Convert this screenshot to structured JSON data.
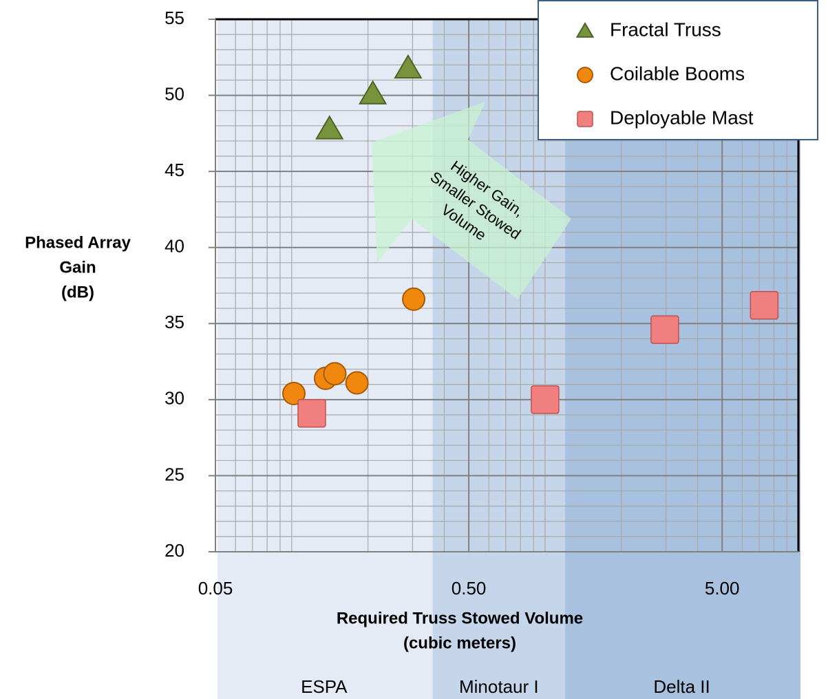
{
  "chart_data": {
    "type": "scatter",
    "xlabel": [
      "Required Truss Stowed Volume",
      "(cubic meters)"
    ],
    "ylabel": [
      "Phased Array",
      "Gain",
      "(dB)"
    ],
    "xscale": "log",
    "xlim": [
      0.05,
      10
    ],
    "ylim": [
      20,
      55
    ],
    "xticks": [
      0.05,
      {
        "value": 0.5,
        "label": "0.50"
      },
      {
        "value": 5,
        "label": "5.00"
      }
    ],
    "yticks": [
      20,
      25,
      30,
      35,
      40,
      45,
      50,
      55
    ],
    "xminorticks": [
      0.06,
      0.07,
      0.08,
      0.09,
      0.1,
      0.2,
      0.3,
      0.4,
      0.6,
      0.7,
      0.8,
      0.9,
      1,
      2,
      3,
      4,
      6,
      7,
      8,
      9
    ],
    "yminorticks": [
      21,
      22,
      23,
      24,
      26,
      27,
      28,
      29,
      31,
      32,
      33,
      34,
      36,
      37,
      38,
      39,
      41,
      42,
      43,
      44,
      46,
      47,
      48,
      49,
      51,
      52,
      53,
      54
    ],
    "grid": true,
    "legend": "top right",
    "bands": [
      {
        "label": "ESPA",
        "from": 0.05,
        "to": 0.36,
        "color": "#e4ebf4"
      },
      {
        "label": "Minotaur I",
        "from": 0.36,
        "to": 1.2,
        "color": "#c6d6ea"
      },
      {
        "label": "Delta II",
        "from": 1.2,
        "to": 10,
        "color": "#a8c1df"
      }
    ],
    "annotation": [
      "Higher Gain,",
      "Smaller Stowed",
      "Volume"
    ],
    "series": [
      {
        "name": "Fractal Truss",
        "marker": "triangle",
        "color": "#77933c",
        "x": [
          0.141,
          0.209,
          0.288
        ],
        "values": [
          47.8,
          50.1,
          51.8
        ]
      },
      {
        "name": "Coilable Booms",
        "marker": "circle",
        "color": "#f0880f",
        "x": [
          0.102,
          0.136,
          0.148,
          0.181,
          0.303
        ],
        "values": [
          30.4,
          31.4,
          31.7,
          31.1,
          36.6
        ]
      },
      {
        "name": "Deployable Mast",
        "marker": "square",
        "color": "#f08080",
        "x": [
          0.12,
          1.0,
          2.97,
          7.33
        ],
        "values": [
          29.1,
          30,
          34.6,
          36.2
        ]
      }
    ]
  }
}
